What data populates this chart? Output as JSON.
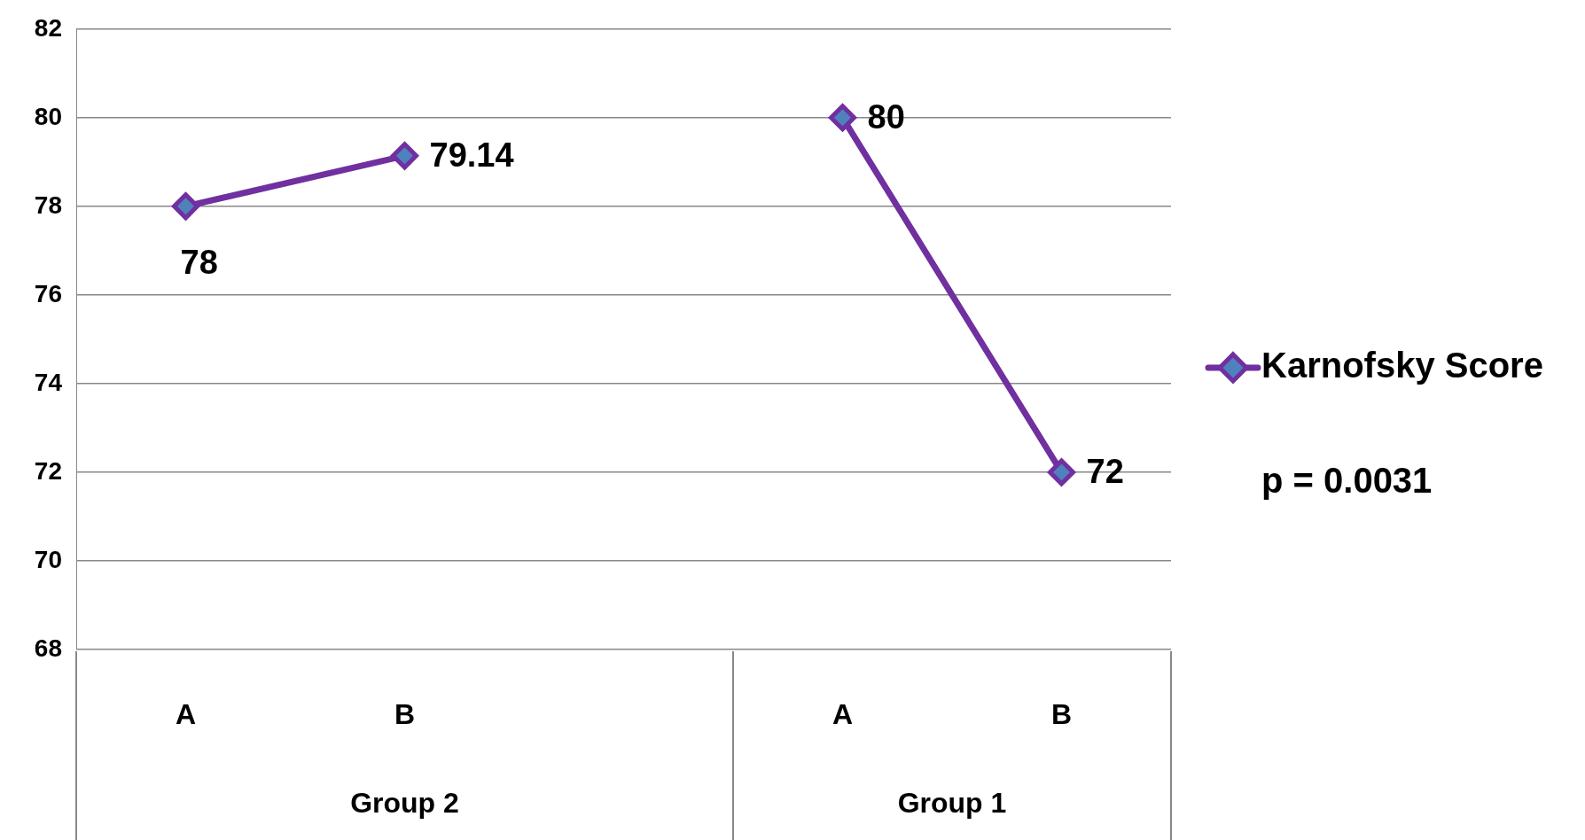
{
  "chart_data": {
    "type": "line",
    "categories": [
      "A",
      "B",
      null,
      "A",
      "B"
    ],
    "series": [
      {
        "name": "Karnofsky Score",
        "color": "#7030a0",
        "values": [
          78,
          79.14,
          null,
          80,
          72
        ]
      }
    ],
    "ylim": [
      68,
      82
    ],
    "yticks": [
      68,
      70,
      72,
      74,
      76,
      78,
      80,
      82
    ],
    "grid": "y",
    "legend": "right",
    "marker": "diamond",
    "data_labels": true,
    "annotations": [
      "Group 2",
      "Group 1",
      "p = 0.0031"
    ]
  }
}
